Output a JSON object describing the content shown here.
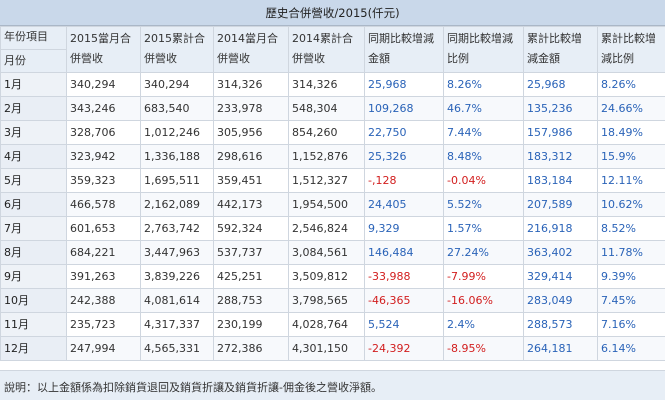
{
  "title": "歷史合併營收/2015(仟元)",
  "headers": {
    "first_top": "年份項目",
    "first_bottom": "月份",
    "columns": [
      [
        "2015當月合",
        "併營收"
      ],
      [
        "2015累計合",
        "併營收"
      ],
      [
        "2014當月合",
        "併營收"
      ],
      [
        "2014累計合",
        "併營收"
      ],
      [
        "同期比較增減",
        "金額"
      ],
      [
        "同期比較增減",
        "比例"
      ],
      [
        "累計比較增",
        "減金額"
      ],
      [
        "累計比較增",
        "減比例"
      ]
    ]
  },
  "rows": [
    {
      "month": "1月",
      "cells": [
        "340,294",
        "340,294",
        "314,326",
        "314,326",
        "25,968",
        "8.26%",
        "25,968",
        "8.26%"
      ],
      "negative": false
    },
    {
      "month": "2月",
      "cells": [
        "343,246",
        "683,540",
        "233,978",
        "548,304",
        "109,268",
        "46.7%",
        "135,236",
        "24.66%"
      ],
      "negative": false
    },
    {
      "month": "3月",
      "cells": [
        "328,706",
        "1,012,246",
        "305,956",
        "854,260",
        "22,750",
        "7.44%",
        "157,986",
        "18.49%"
      ],
      "negative": false
    },
    {
      "month": "4月",
      "cells": [
        "323,942",
        "1,336,188",
        "298,616",
        "1,152,876",
        "25,326",
        "8.48%",
        "183,312",
        "15.9%"
      ],
      "negative": false
    },
    {
      "month": "5月",
      "cells": [
        "359,323",
        "1,695,511",
        "359,451",
        "1,512,327",
        "-,128",
        "-0.04%",
        "183,184",
        "12.11%"
      ],
      "negative": true
    },
    {
      "month": "6月",
      "cells": [
        "466,578",
        "2,162,089",
        "442,173",
        "1,954,500",
        "24,405",
        "5.52%",
        "207,589",
        "10.62%"
      ],
      "negative": false
    },
    {
      "month": "7月",
      "cells": [
        "601,653",
        "2,763,742",
        "592,324",
        "2,546,824",
        "9,329",
        "1.57%",
        "216,918",
        "8.52%"
      ],
      "negative": false
    },
    {
      "month": "8月",
      "cells": [
        "684,221",
        "3,447,963",
        "537,737",
        "3,084,561",
        "146,484",
        "27.24%",
        "363,402",
        "11.78%"
      ],
      "negative": false
    },
    {
      "month": "9月",
      "cells": [
        "391,263",
        "3,839,226",
        "425,251",
        "3,509,812",
        "-33,988",
        "-7.99%",
        "329,414",
        "9.39%"
      ],
      "negative": true
    },
    {
      "month": "10月",
      "cells": [
        "242,388",
        "4,081,614",
        "288,753",
        "3,798,565",
        "-46,365",
        "-16.06%",
        "283,049",
        "7.45%"
      ],
      "negative": true
    },
    {
      "month": "11月",
      "cells": [
        "235,723",
        "4,317,337",
        "230,199",
        "4,028,764",
        "5,524",
        "2.4%",
        "288,573",
        "7.16%"
      ],
      "negative": false
    },
    {
      "month": "12月",
      "cells": [
        "247,994",
        "4,565,331",
        "272,386",
        "4,301,150",
        "-24,392",
        "-8.95%",
        "264,181",
        "6.14%"
      ],
      "negative": true
    }
  ],
  "note": "說明：以上金額係為扣除銷貨退回及銷貨折讓及銷貨折讓-佣金後之營收淨額。",
  "colors": {
    "positive": "#2a63b8",
    "negative": "#d21e1e",
    "header_bg": "#c9d8ea"
  }
}
